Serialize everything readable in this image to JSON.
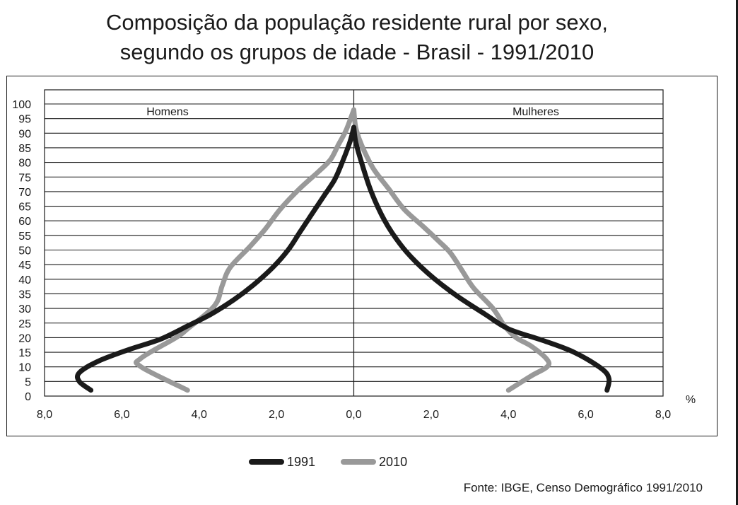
{
  "title_line1": "Composição da população residente rural por sexo,",
  "title_line2": "segundo os grupos de idade - Brasil - 1991/2010",
  "source": "Fonte: IBGE, Censo Demográfico 1991/2010",
  "chart_data": {
    "type": "line",
    "label_left": "Homens",
    "label_right": "Mulheres",
    "unit_label": "%",
    "x_ticks": [
      "8,0",
      "6,0",
      "4,0",
      "2,0",
      "0,0",
      "2,0",
      "4,0",
      "6,0",
      "8,0"
    ],
    "y_ticks": [
      "0",
      "5",
      "10",
      "15",
      "20",
      "25",
      "30",
      "35",
      "40",
      "45",
      "50",
      "55",
      "60",
      "65",
      "70",
      "75",
      "80",
      "85",
      "90",
      "95",
      "100"
    ],
    "x_range": [
      -8,
      8
    ],
    "y_range": [
      0,
      100
    ],
    "grid": true,
    "series": [
      {
        "name": "1991",
        "color": "#1a1a1a",
        "homens": [
          [
            -6.8,
            2
          ],
          [
            -7.1,
            5
          ],
          [
            -7.1,
            8
          ],
          [
            -6.6,
            12
          ],
          [
            -5.8,
            16
          ],
          [
            -5.0,
            19.5
          ],
          [
            -4.3,
            24
          ],
          [
            -3.7,
            28
          ],
          [
            -3.1,
            33
          ],
          [
            -2.6,
            38
          ],
          [
            -2.1,
            44
          ],
          [
            -1.7,
            50
          ],
          [
            -1.4,
            56
          ],
          [
            -1.1,
            62
          ],
          [
            -0.8,
            68
          ],
          [
            -0.5,
            74
          ],
          [
            -0.3,
            80
          ],
          [
            -0.1,
            87
          ],
          [
            0,
            92
          ]
        ],
        "mulheres": [
          [
            6.55,
            2
          ],
          [
            6.6,
            6
          ],
          [
            6.4,
            9.5
          ],
          [
            5.7,
            15
          ],
          [
            4.9,
            19
          ],
          [
            4.0,
            23
          ],
          [
            3.4,
            28
          ],
          [
            2.7,
            34
          ],
          [
            2.1,
            40
          ],
          [
            1.6,
            46
          ],
          [
            1.2,
            52
          ],
          [
            0.8,
            60
          ],
          [
            0.45,
            70
          ],
          [
            0.2,
            80
          ],
          [
            0.05,
            87
          ],
          [
            0,
            92
          ]
        ]
      },
      {
        "name": "2010",
        "color": "#999999",
        "homens": [
          [
            -4.3,
            2
          ],
          [
            -5.5,
            10
          ],
          [
            -5.5,
            13
          ],
          [
            -4.6,
            20
          ],
          [
            -4.3,
            23
          ],
          [
            -3.6,
            31
          ],
          [
            -3.4,
            38
          ],
          [
            -3.2,
            44
          ],
          [
            -2.7,
            51
          ],
          [
            -2.3,
            57
          ],
          [
            -1.9,
            64
          ],
          [
            -1.4,
            71
          ],
          [
            -0.9,
            77
          ],
          [
            -0.6,
            81
          ],
          [
            -0.4,
            86
          ],
          [
            -0.2,
            91
          ],
          [
            0,
            98
          ]
        ],
        "mulheres": [
          [
            4.0,
            2
          ],
          [
            4.6,
            7
          ],
          [
            5.0,
            10
          ],
          [
            5.0,
            12.5
          ],
          [
            4.6,
            17
          ],
          [
            4.2,
            20
          ],
          [
            3.9,
            24
          ],
          [
            3.6,
            30
          ],
          [
            3.1,
            37
          ],
          [
            2.8,
            43
          ],
          [
            2.5,
            49
          ],
          [
            2.2,
            53
          ],
          [
            1.8,
            58
          ],
          [
            1.3,
            64
          ],
          [
            0.9,
            71
          ],
          [
            0.5,
            78
          ],
          [
            0.2,
            86
          ],
          [
            0.05,
            92
          ],
          [
            0,
            98
          ]
        ]
      }
    ]
  }
}
